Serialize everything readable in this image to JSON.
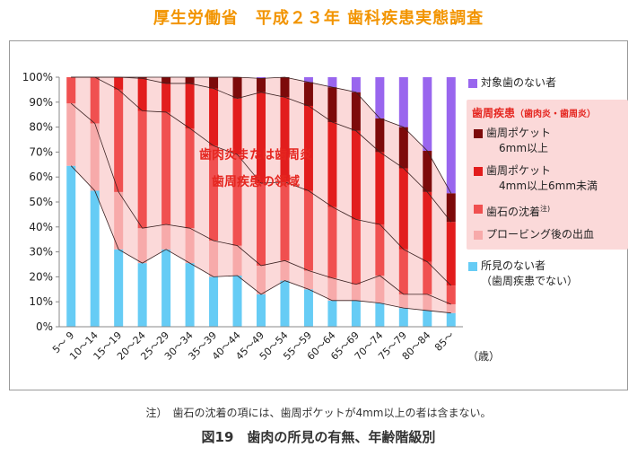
{
  "title": "厚生労働省　平成２３年 歯科疾患実態調査",
  "footnote": "注）　歯石の沈着の項には、歯周ポケットが4mm以上の者は含まない。",
  "caption": "図19　歯肉の所見の有無、年齢階級別",
  "chart_data": {
    "type": "bar",
    "stacked": true,
    "categories": [
      "5～ 9",
      "10～14",
      "15～19",
      "20～24",
      "25～29",
      "30～34",
      "35～39",
      "40～44",
      "45～49",
      "50～54",
      "55～59",
      "60～64",
      "65～69",
      "70～74",
      "75～79",
      "80～84",
      "85～"
    ],
    "x_unit": "（歳）",
    "ylim": [
      0,
      100
    ],
    "yticks": [
      "0%",
      "10%",
      "20%",
      "30%",
      "40%",
      "50%",
      "60%",
      "70%",
      "80%",
      "90%",
      "100%"
    ],
    "annotation": [
      "歯肉炎または歯周炎",
      "歯周疾患の領域"
    ],
    "legend_group_title": "歯周疾患",
    "legend_group_subtitle": "（歯肉炎・歯周炎）",
    "series": [
      {
        "name": "所見のない者",
        "name_sub": "（歯周疾患でない）",
        "color": "#66ccf5",
        "values": [
          64.5,
          54.5,
          31,
          25.5,
          31,
          25.5,
          20,
          20.5,
          13,
          18.5,
          15,
          10.5,
          10.5,
          9.5,
          7.5,
          6.5,
          5.5
        ]
      },
      {
        "name": "プロービング後の出血",
        "color": "#f7aaaa",
        "values": [
          25,
          27,
          23,
          14,
          10,
          14,
          14.5,
          12,
          11.5,
          8,
          7.5,
          9,
          6.5,
          11,
          5.5,
          6.5,
          3.5
        ]
      },
      {
        "name": "歯石の沈着",
        "name_sup": "注)",
        "color": "#f05050",
        "values": [
          10.5,
          18.5,
          41,
          47,
          45,
          40,
          38,
          36.5,
          33,
          31.5,
          32,
          28.5,
          26,
          20.5,
          18,
          13,
          7.5
        ]
      },
      {
        "name": "歯周ポケット",
        "name_sub": "4mm以上6mm未満",
        "color": "#e21d1d",
        "values": [
          0,
          0,
          5,
          13,
          11.5,
          18,
          23,
          22.5,
          36.5,
          34,
          34,
          34,
          35.5,
          29,
          32.5,
          28,
          25.5
        ]
      },
      {
        "name": "歯周ポケット",
        "name_sub": "6mm以上",
        "color": "#7d0a0a",
        "values": [
          0,
          0,
          0,
          0.5,
          2.5,
          2.5,
          4.5,
          8.5,
          5.5,
          8,
          9.5,
          14,
          15.5,
          13.5,
          16.5,
          16.5,
          11.5
        ]
      },
      {
        "name": "対象歯のない者",
        "color": "#9966ee",
        "values": [
          0,
          0,
          0,
          0,
          0,
          0,
          0,
          0,
          0.5,
          0,
          2,
          4,
          6,
          16.5,
          20,
          29.5,
          46.5
        ]
      }
    ]
  }
}
